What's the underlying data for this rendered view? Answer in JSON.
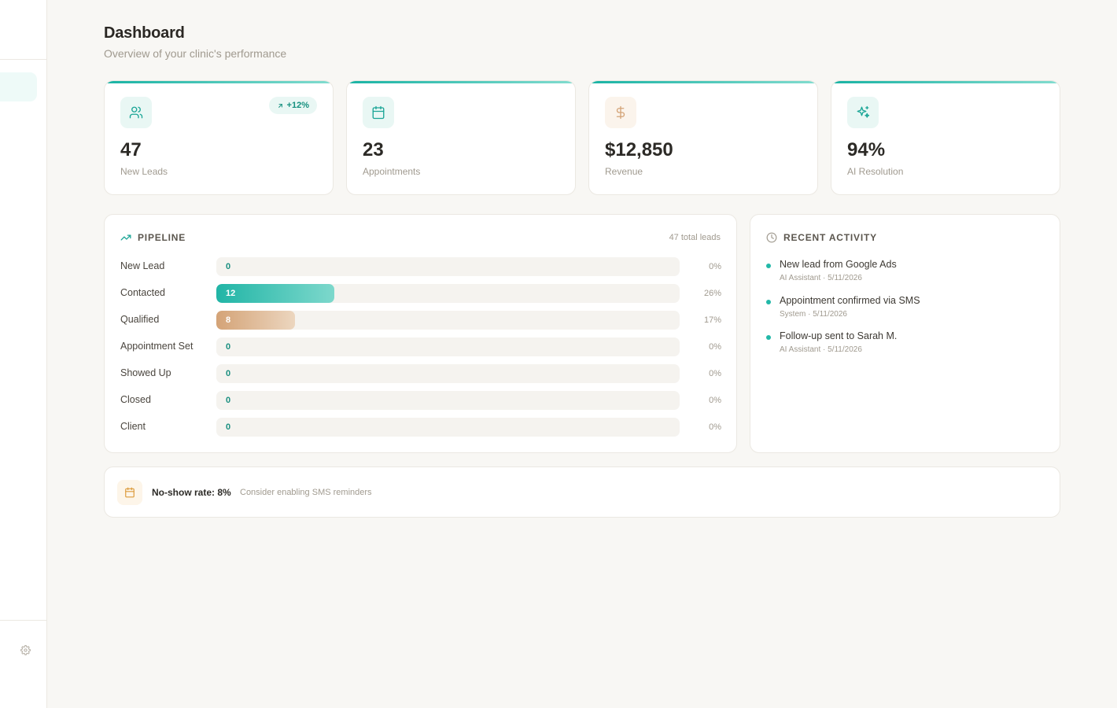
{
  "header": {
    "title": "Dashboard",
    "subtitle": "Overview of your clinic's performance"
  },
  "stats": [
    {
      "value": "47",
      "label": "New Leads",
      "icon": "users-icon",
      "badge": "+12%"
    },
    {
      "value": "23",
      "label": "Appointments",
      "icon": "calendar-icon"
    },
    {
      "value": "$12,850",
      "label": "Revenue",
      "icon": "dollar-icon"
    },
    {
      "value": "94%",
      "label": "AI Resolution",
      "icon": "sparkles-icon"
    }
  ],
  "pipeline": {
    "title": "PIPELINE",
    "total": "47 total leads",
    "stages": [
      {
        "label": "New Lead",
        "count": "0",
        "percent": "0%",
        "fraction": 0
      },
      {
        "label": "Contacted",
        "count": "12",
        "percent": "26%",
        "fraction": 0.255
      },
      {
        "label": "Qualified",
        "count": "8",
        "percent": "17%",
        "fraction": 0.17
      },
      {
        "label": "Appointment Set",
        "count": "0",
        "percent": "0%",
        "fraction": 0
      },
      {
        "label": "Showed Up",
        "count": "0",
        "percent": "0%",
        "fraction": 0
      },
      {
        "label": "Closed",
        "count": "0",
        "percent": "0%",
        "fraction": 0
      },
      {
        "label": "Client",
        "count": "0",
        "percent": "0%",
        "fraction": 0
      }
    ]
  },
  "activity": {
    "title": "RECENT ACTIVITY",
    "items": [
      {
        "text": "New lead from Google Ads",
        "meta": "AI Assistant · 5/11/2026"
      },
      {
        "text": "Appointment confirmed via SMS",
        "meta": "System · 5/11/2026"
      },
      {
        "text": "Follow-up sent to Sarah M.",
        "meta": "AI Assistant · 5/11/2026"
      }
    ]
  },
  "noshow": {
    "title": "No-show rate: 8%",
    "hint": "Consider enabling SMS reminders"
  },
  "colors": {
    "accent": "#1ab3a4",
    "sand": "#d4a377",
    "background": "#f8f7f4"
  }
}
